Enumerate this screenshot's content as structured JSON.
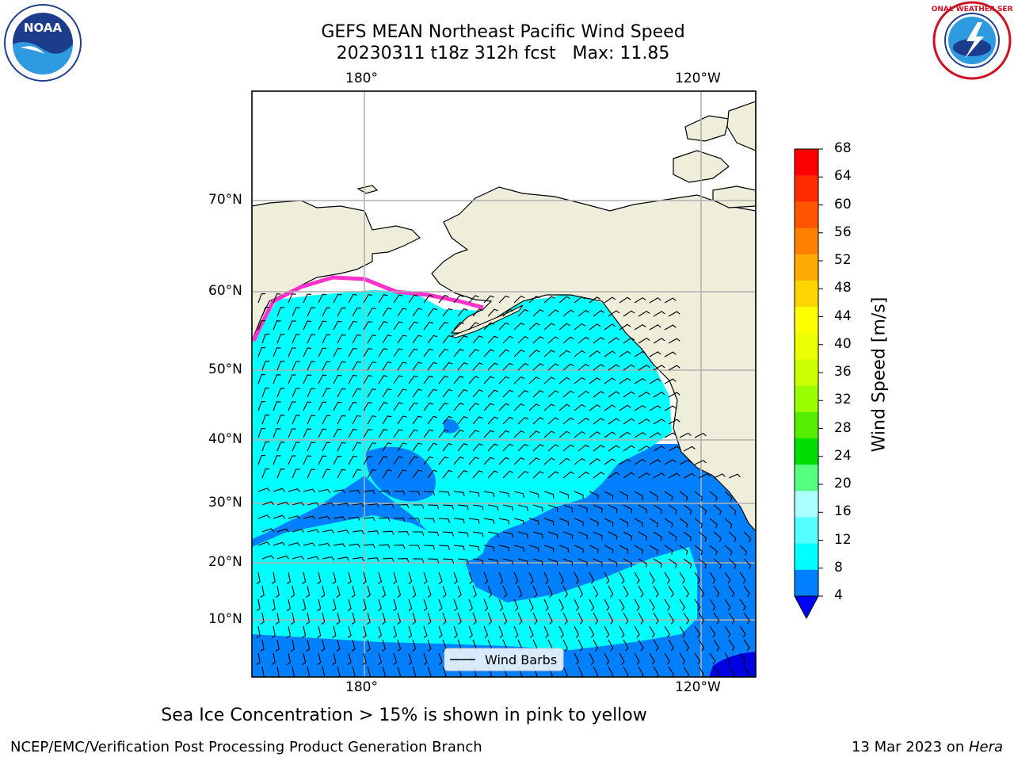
{
  "header": {
    "title_line1": "GEFS MEAN Northeast Pacific Wind Speed",
    "title_line2": "20230311 t18z 312h fcst   Max: 11.85"
  },
  "logos": {
    "left_name": "NOAA",
    "right_name": "NATIONAL WEATHER SERVICE"
  },
  "map": {
    "lon_ticks_top": [
      "180°",
      "120°W"
    ],
    "lon_ticks_bottom": [
      "180°",
      "120°W"
    ],
    "lat_ticks": [
      "70°N",
      "60°N",
      "50°N",
      "40°N",
      "30°N",
      "20°N",
      "10°N"
    ],
    "legend_label": "Wind Barbs",
    "colors": {
      "land": "#efeedb",
      "ocean_light": "#00ffff",
      "ocean_mid": "#0080ff",
      "ocean_dark": "#0000e6",
      "grid": "#b0b0b0",
      "sea_ice": "#ff33cc"
    }
  },
  "colorbar": {
    "label": "Wind Speed [m/s]",
    "ticks": [
      "68",
      "64",
      "60",
      "56",
      "52",
      "48",
      "44",
      "40",
      "36",
      "32",
      "28",
      "24",
      "20",
      "16",
      "12",
      "8",
      "4"
    ],
    "colors": [
      "#ff0000",
      "#ff2a00",
      "#ff5500",
      "#ff8000",
      "#ffaa00",
      "#ffd500",
      "#ffff00",
      "#eaff00",
      "#ccff00",
      "#99ff00",
      "#55ee00",
      "#00dd00",
      "#55ff7f",
      "#aaffff",
      "#55ffff",
      "#00ffff",
      "#0080ff"
    ],
    "extend_color": "#0000ff"
  },
  "caption": "Sea Ice Concentration > 15% is shown in pink to yellow",
  "footer": {
    "left": "NCEP/EMC/Verification Post Processing Product Generation Branch",
    "right_prefix": "13 Mar 2023 on ",
    "right_host": "Hera"
  }
}
